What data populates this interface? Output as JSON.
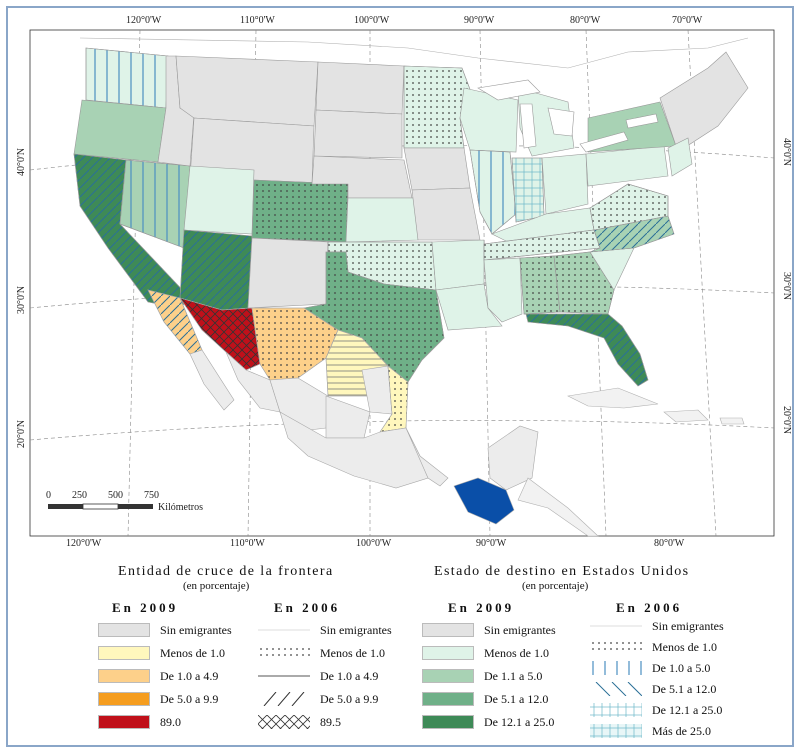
{
  "map": {
    "longitude_labels_top": [
      "120°0'W",
      "110°0'W",
      "100°0'W",
      "90°0'W",
      "80°0'W",
      "70°0'W"
    ],
    "longitude_labels_bottom": [
      "120°0'W",
      "110°0'W",
      "100°0'W",
      "90°0'W",
      "80°0'W"
    ],
    "latitude_labels_left": [
      "40°0'N",
      "30°0'N",
      "20°0'N"
    ],
    "latitude_labels_right": [
      "40°0'N",
      "30°0'N",
      "20°0'N"
    ],
    "scale_bar": {
      "ticks": [
        "0",
        "250",
        "500",
        "750"
      ],
      "unit": "Kilómetros"
    }
  },
  "legend_left": {
    "title": "Entidad de cruce de la frontera",
    "subtitle": "(en porcentaje)",
    "year_a": "En 2009",
    "year_b": "En 2006",
    "items_2009": [
      {
        "label": "Sin emigrantes",
        "color": "#e3e3e3"
      },
      {
        "label": "Menos de 1.0",
        "color": "#fff7bd"
      },
      {
        "label": "De 1.0 a 4.9",
        "color": "#fdd08a"
      },
      {
        "label": "De 5.0 a 9.9",
        "color": "#f59d1f"
      },
      {
        "label": "89.0",
        "color": "#c0101a"
      }
    ],
    "items_2006": [
      {
        "label": "Sin emigrantes",
        "pattern": "none"
      },
      {
        "label": "Menos de 1.0",
        "pattern": "dots"
      },
      {
        "label": "De 1.0 a 4.9",
        "pattern": "hline"
      },
      {
        "label": "De 5.0 a 9.9",
        "pattern": "diag"
      },
      {
        "label": "89.5",
        "pattern": "cross"
      }
    ]
  },
  "legend_right": {
    "title": "Estado de destino en Estados Unidos",
    "subtitle": "(en porcentaje)",
    "year_a": "En 2009",
    "year_b": "En 2006",
    "items_2009": [
      {
        "label": "Sin emigrantes",
        "color": "#e3e3e3"
      },
      {
        "label": "Menos de 1.0",
        "color": "#dff3e8"
      },
      {
        "label": "De 1.1 a 5.0",
        "color": "#a8d2b4"
      },
      {
        "label": "De 5.1 a 12.0",
        "color": "#6fb088"
      },
      {
        "label": "De 12.1 a 25.0",
        "color": "#3e8a57"
      }
    ],
    "items_2006": [
      {
        "label": "Sin emigrantes",
        "pattern": "none"
      },
      {
        "label": "Menos de 1.0",
        "pattern": "dots"
      },
      {
        "label": "De 1.0 a 5.0",
        "pattern": "vline"
      },
      {
        "label": "De 5.1 a 12.0",
        "pattern": "diag"
      },
      {
        "label": "De 12.1 a 25.0",
        "pattern": "grid"
      },
      {
        "label": "Más de 25.0",
        "pattern": "xgrid"
      }
    ]
  },
  "colors": {
    "us_none": "#e3e3e3",
    "us_lt1": "#dff3e8",
    "us_1_5": "#a8d2b4",
    "us_5_12": "#6fb088",
    "us_12_25": "#3e8a57",
    "mx_none": "#ececec",
    "mx_lt1": "#fff7bd",
    "mx_1_5": "#fdd08a",
    "mx_5_10": "#f59d1f",
    "mx_89": "#c0101a",
    "origin_state": "#0a4fa8",
    "ocean": "#ffffff",
    "frame": "#8aa6c8"
  }
}
